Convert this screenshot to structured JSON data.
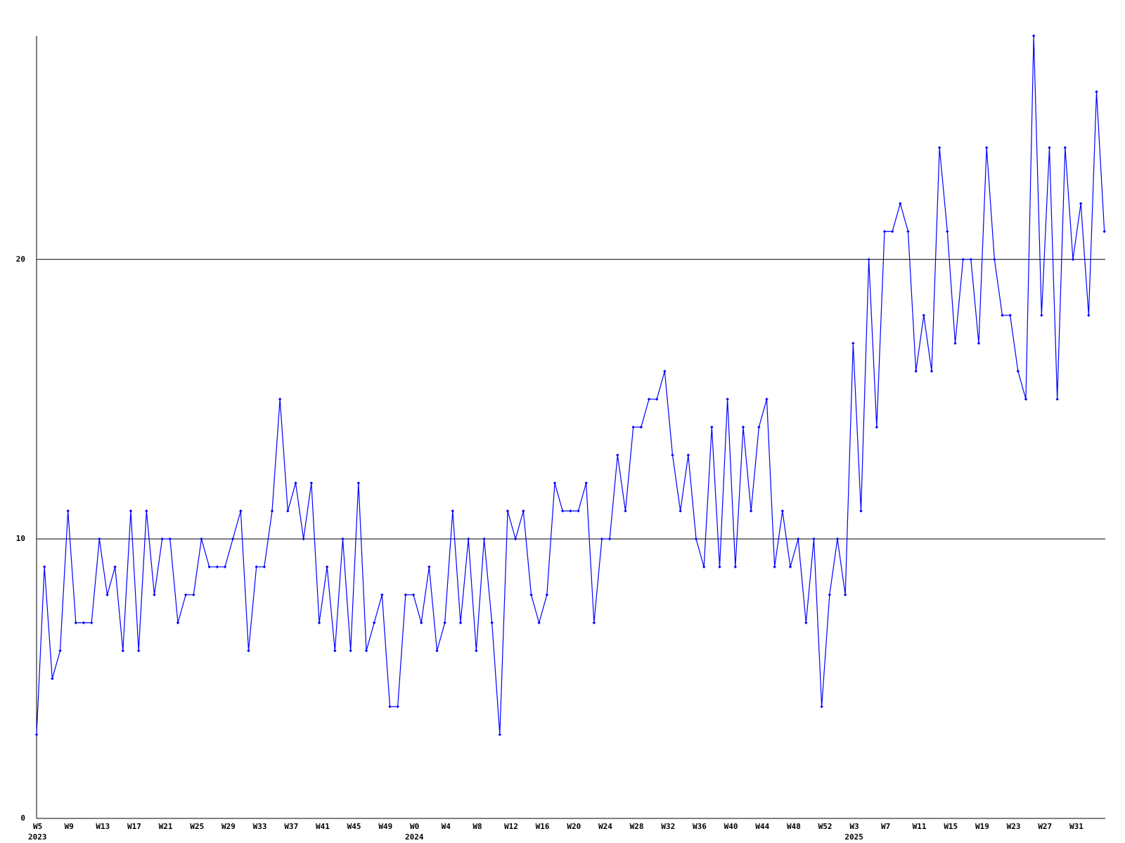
{
  "chart_data": {
    "type": "line",
    "categories": [
      "W5",
      null,
      null,
      null,
      "W9",
      null,
      null,
      null,
      "W13",
      null,
      null,
      null,
      "W17",
      null,
      null,
      null,
      "W21",
      null,
      null,
      null,
      "W25",
      null,
      null,
      null,
      "W29",
      null,
      null,
      null,
      "W33",
      null,
      null,
      null,
      "W37",
      null,
      null,
      null,
      "W41",
      null,
      null,
      null,
      "W45",
      null,
      null,
      null,
      "W49",
      null,
      null,
      null,
      "W0",
      null,
      null,
      null,
      "W4",
      null,
      null,
      null,
      "W8",
      null,
      null,
      null,
      "W12",
      null,
      null,
      null,
      "W16",
      null,
      null,
      null,
      "W20",
      null,
      null,
      null,
      "W24",
      null,
      null,
      null,
      "W28",
      null,
      null,
      null,
      "W32",
      null,
      null,
      null,
      "W36",
      null,
      null,
      null,
      "W40",
      null,
      null,
      null,
      "W44",
      null,
      null,
      null,
      "W48",
      null,
      null,
      null,
      "W52",
      null,
      null,
      null,
      "W3",
      null,
      null,
      null,
      "W7",
      null,
      null,
      null,
      "W11",
      null,
      null,
      null,
      "W15",
      null,
      null,
      null,
      "W19",
      null,
      null,
      null,
      "W23",
      null,
      null,
      null,
      "W27",
      null,
      null,
      null,
      "W31",
      null,
      null,
      null,
      null
    ],
    "years": [
      "2023",
      "2024",
      "2025"
    ],
    "series": [
      {
        "color": "#0000ff",
        "values": [
          3,
          9,
          5,
          6,
          11,
          7,
          7,
          7,
          10,
          8,
          9,
          6,
          11,
          6,
          11,
          8,
          10,
          10,
          7,
          8,
          8,
          10,
          9,
          9,
          9,
          10,
          11,
          6,
          9,
          9,
          11,
          15,
          11,
          12,
          10,
          12,
          7,
          9,
          6,
          10,
          6,
          12,
          6,
          7,
          8,
          4,
          4,
          8,
          8,
          7,
          9,
          6,
          7,
          11,
          7,
          10,
          6,
          10,
          7,
          3,
          11,
          10,
          11,
          8,
          7,
          8,
          12,
          11,
          11,
          11,
          12,
          7,
          10,
          10,
          13,
          11,
          14,
          14,
          15,
          15,
          16,
          13,
          11,
          13,
          10,
          9,
          14,
          9,
          15,
          9,
          14,
          11,
          14,
          15,
          9,
          11,
          9,
          10,
          7,
          10,
          4,
          8,
          10,
          8,
          17,
          11,
          20,
          14,
          21,
          21,
          22,
          21,
          16,
          18,
          16,
          24,
          21,
          17,
          20,
          20,
          17,
          24,
          20,
          18,
          18,
          16,
          15,
          28,
          18,
          24,
          15,
          24,
          20,
          22,
          18,
          26,
          21
        ]
      }
    ],
    "ylim": [
      0,
      28
    ],
    "yticks": [
      0,
      10,
      20
    ],
    "grid": true
  }
}
